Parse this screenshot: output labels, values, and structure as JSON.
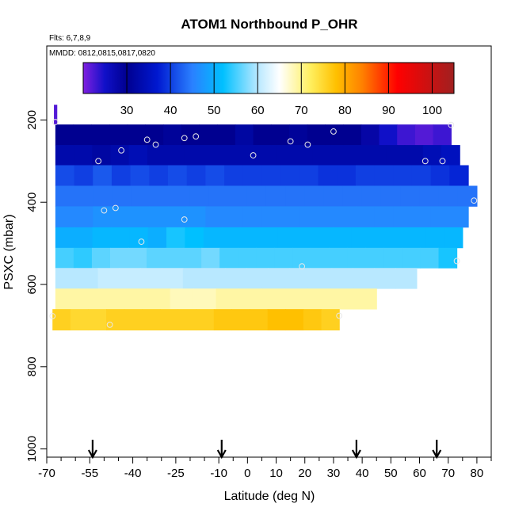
{
  "chart_data": {
    "type": "heatmap",
    "title": "ATOM1 Northbound P_OHR",
    "flights_note": "Flts: 6,7,8,9",
    "dates_note": "MMDD: 0812,0815,0817,0820",
    "xlabel": "Latitude (deg N)",
    "ylabel": "PSXC (mbar)",
    "xlim": [
      -70,
      85
    ],
    "ylim": [
      1020,
      20
    ],
    "x_ticks": [
      -70,
      -55,
      -40,
      -25,
      -10,
      0,
      10,
      20,
      30,
      40,
      50,
      60,
      70,
      80
    ],
    "x_minor_ticks": [
      -65,
      -60,
      -50,
      -45,
      -35,
      -30,
      -20,
      -15,
      -5,
      5,
      15,
      25,
      35,
      45,
      55,
      65,
      75,
      85
    ],
    "y_ticks": [
      200,
      400,
      600,
      800,
      1000
    ],
    "colorbar": {
      "min": 20,
      "max": 105,
      "ticks": [
        30,
        40,
        50,
        60,
        70,
        80,
        90,
        100
      ],
      "stops": [
        [
          20,
          "#8020e0"
        ],
        [
          25,
          "#1010c8"
        ],
        [
          30,
          "#000090"
        ],
        [
          37,
          "#0018d0"
        ],
        [
          45,
          "#2a80ff"
        ],
        [
          52,
          "#00c0ff"
        ],
        [
          60,
          "#b8e8ff"
        ],
        [
          65,
          "#ffffff"
        ],
        [
          72,
          "#fff060"
        ],
        [
          78,
          "#ffc000"
        ],
        [
          84,
          "#ff8000"
        ],
        [
          92,
          "#ff0000"
        ],
        [
          105,
          "#a02020"
        ]
      ]
    },
    "bands": [
      {
        "p_top": 163,
        "p_bot": 211,
        "lat_start": -67.5,
        "lat_end": -66.5,
        "values": [
          22
        ]
      },
      {
        "p_top": 211,
        "p_bot": 261,
        "lat_start": -67,
        "lat_end": 71,
        "values": [
          30,
          30,
          30,
          30,
          30,
          30,
          31,
          30,
          30,
          30,
          32,
          30,
          30,
          31,
          30,
          30,
          30,
          28,
          25,
          23,
          22,
          23
        ]
      },
      {
        "p_top": 261,
        "p_bot": 310,
        "lat_start": -67,
        "lat_end": 74,
        "values": [
          33,
          33,
          32,
          33,
          34,
          33,
          33,
          33,
          33,
          33,
          33,
          33,
          33,
          33,
          33,
          33,
          33,
          33,
          33,
          33,
          34,
          35
        ]
      },
      {
        "p_top": 310,
        "p_bot": 360,
        "lat_start": -67,
        "lat_end": 77,
        "values": [
          41,
          40,
          42,
          40,
          41,
          40,
          41,
          40,
          41,
          40,
          40,
          40,
          40,
          40,
          39,
          39,
          40,
          40,
          40,
          40,
          39,
          38
        ]
      },
      {
        "p_top": 360,
        "p_bot": 410,
        "lat_start": -67,
        "lat_end": 80,
        "values": [
          44,
          44,
          44,
          44,
          44,
          44,
          44,
          44,
          44,
          44,
          44,
          44,
          44,
          44,
          44,
          44,
          44,
          44,
          44,
          44,
          44,
          44
        ]
      },
      {
        "p_top": 410,
        "p_bot": 461,
        "lat_start": -67,
        "lat_end": 77,
        "values": [
          46,
          46,
          47,
          47,
          47,
          47,
          47,
          47,
          46,
          46,
          46,
          46,
          46,
          46,
          46,
          46,
          46,
          46,
          46,
          46,
          46,
          46
        ]
      },
      {
        "p_top": 461,
        "p_bot": 511,
        "lat_start": -67,
        "lat_end": 75,
        "values": [
          50,
          50,
          51,
          51,
          51,
          50,
          53,
          52,
          51,
          51,
          51,
          51,
          51,
          51,
          51,
          51,
          51,
          51,
          51,
          51,
          51,
          51
        ]
      },
      {
        "p_top": 511,
        "p_bot": 560,
        "lat_start": -67,
        "lat_end": 73,
        "values": [
          55,
          54,
          56,
          57,
          57,
          56,
          56,
          56,
          57,
          55,
          55,
          55,
          55,
          55,
          55,
          55,
          55,
          55,
          55,
          55,
          55,
          53
        ]
      },
      {
        "p_top": 560,
        "p_bot": 610,
        "lat_start": -67,
        "lat_end": 59,
        "values": [
          60,
          60,
          61,
          61,
          61,
          61,
          60,
          60,
          60,
          60,
          60,
          60,
          60,
          60,
          60,
          60,
          60
        ]
      },
      {
        "p_top": 610,
        "p_bot": 660,
        "lat_start": -67,
        "lat_end": 45,
        "values": [
          69,
          69,
          69,
          69,
          69,
          68,
          68,
          69,
          69,
          69,
          69,
          69,
          69,
          69
        ]
      },
      {
        "p_top": 660,
        "p_bot": 711,
        "lat_start": -68,
        "lat_end": 32,
        "values": [
          76,
          75,
          75,
          76,
          76,
          76,
          76,
          76,
          76,
          77,
          77,
          77,
          78,
          78,
          77,
          76
        ]
      }
    ],
    "points": [
      {
        "lat": -67,
        "p": 205
      },
      {
        "lat": 71,
        "p": 212
      },
      {
        "lat": 30,
        "p": 228
      },
      {
        "lat": -35,
        "p": 248
      },
      {
        "lat": -32,
        "p": 260
      },
      {
        "lat": -22,
        "p": 244
      },
      {
        "lat": -18,
        "p": 240
      },
      {
        "lat": 15,
        "p": 252
      },
      {
        "lat": 21,
        "p": 260
      },
      {
        "lat": -44,
        "p": 274
      },
      {
        "lat": 2,
        "p": 286
      },
      {
        "lat": -52,
        "p": 300
      },
      {
        "lat": 62,
        "p": 300
      },
      {
        "lat": 68,
        "p": 300
      },
      {
        "lat": 79,
        "p": 396
      },
      {
        "lat": -50,
        "p": 420
      },
      {
        "lat": -46,
        "p": 414
      },
      {
        "lat": -22,
        "p": 442
      },
      {
        "lat": -37,
        "p": 496
      },
      {
        "lat": 73,
        "p": 543
      },
      {
        "lat": 19,
        "p": 556
      },
      {
        "lat": -68,
        "p": 677
      },
      {
        "lat": 32,
        "p": 676
      },
      {
        "lat": -48,
        "p": 698
      }
    ],
    "arrows_lat": [
      -54,
      -9,
      38,
      66
    ]
  }
}
